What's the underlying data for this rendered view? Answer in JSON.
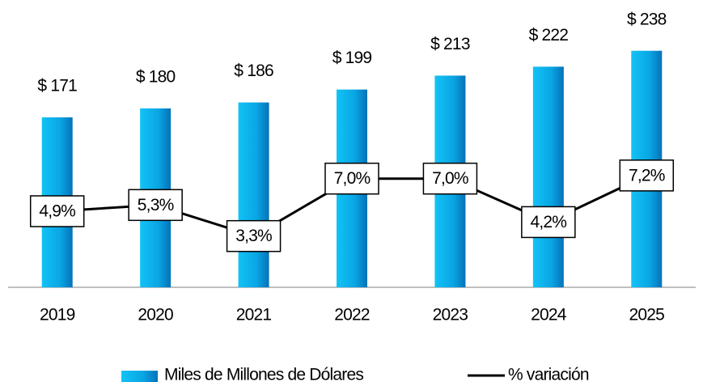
{
  "chart_data": {
    "type": "bar",
    "categories": [
      "2019",
      "2020",
      "2021",
      "2022",
      "2023",
      "2024",
      "2025"
    ],
    "series": [
      {
        "name": "Miles de Millones de Dólares",
        "color": "#0a9ee0",
        "values": [
          171,
          180,
          186,
          199,
          213,
          222,
          238
        ],
        "value_labels": [
          "$ 171",
          "$ 180",
          "$ 186",
          "$ 199",
          "$ 213",
          "$ 222",
          "$ 238"
        ]
      },
      {
        "name": "% variación",
        "type": "line",
        "axis": "y2",
        "color": "#000000",
        "values": [
          4.9,
          5.3,
          3.3,
          7.0,
          7.0,
          4.2,
          7.2
        ],
        "value_labels": [
          "4,9%",
          "5,3%",
          "3,3%",
          "7,0%",
          "7,0%",
          "4,2%",
          "7,2%"
        ]
      }
    ],
    "ylim": [
      0,
      250
    ],
    "y2lim": [
      0,
      16
    ]
  }
}
